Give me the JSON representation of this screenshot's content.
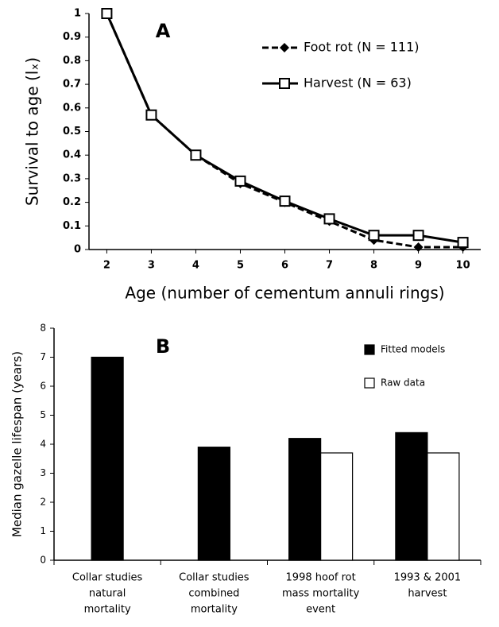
{
  "chart_data": [
    {
      "type": "line",
      "annotation": "A",
      "x_label": "Age (number of cementum annuli rings)",
      "y_label": "Survival to age (lₓ)",
      "x": [
        2,
        3,
        4,
        5,
        6,
        7,
        8,
        9,
        10
      ],
      "series": [
        {
          "name": "Foot rot (N = 111)",
          "color": "#000000",
          "values": [
            1,
            0.57,
            0.4,
            0.28,
            0.2,
            0.12,
            0.04,
            0.01,
            0.01
          ]
        },
        {
          "name": "Harvest (N = 63)",
          "color": "#000000",
          "values": [
            1,
            0.57,
            0.4,
            0.29,
            0.205,
            0.13,
            0.06,
            0.06,
            0.03
          ]
        }
      ],
      "xlim": [
        1.6,
        10.4
      ],
      "xticks": [
        2,
        3,
        4,
        5,
        6,
        7,
        8,
        9,
        10
      ],
      "ylim": [
        0,
        1
      ],
      "yticks": [
        0,
        0.1,
        0.2,
        0.3,
        0.4,
        0.5,
        0.6,
        0.7,
        0.8,
        0.9,
        1
      ]
    },
    {
      "type": "bar",
      "annotation": "B",
      "y_label": "Median gazelle lifespan (years)",
      "categories": [
        [
          "Collar studies",
          "natural",
          "mortality"
        ],
        [
          "Collar studies",
          "combined",
          "mortality"
        ],
        [
          "1998 hoof rot",
          "mass mortality",
          "event"
        ],
        [
          "1993 & 2001",
          "harvest"
        ]
      ],
      "series": [
        {
          "name": "Fitted models",
          "color": "#000000",
          "values": [
            7.0,
            3.9,
            4.2,
            4.4
          ]
        },
        {
          "name": "Raw data",
          "color": "#ffffff",
          "values": [
            null,
            null,
            3.7,
            3.7
          ]
        }
      ],
      "ylim": [
        0,
        8
      ],
      "yticks": [
        0,
        1,
        2,
        3,
        4,
        5,
        6,
        7,
        8
      ]
    }
  ]
}
